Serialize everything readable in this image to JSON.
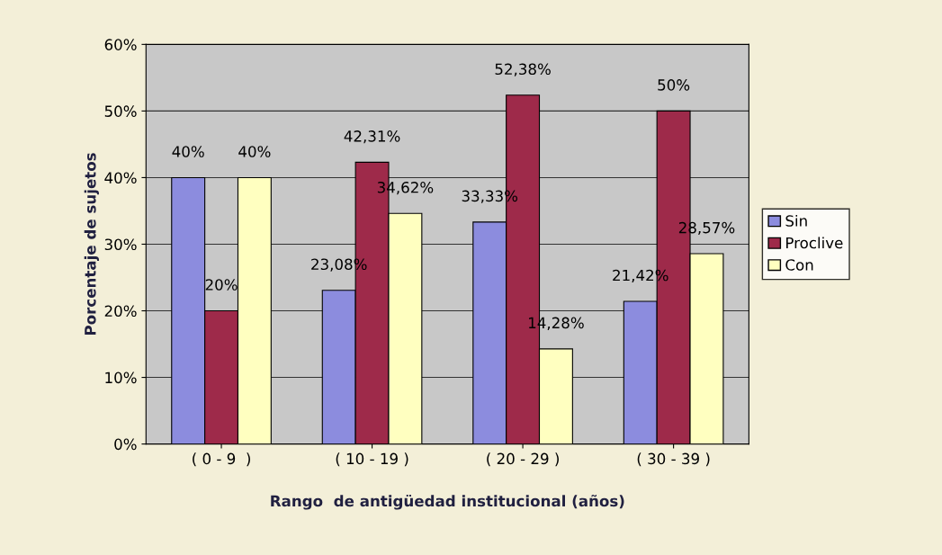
{
  "chart_data": {
    "type": "bar",
    "xlabel": "Rango  de antigüedad institucional (años)",
    "ylabel": "Porcentaje de sujetos",
    "categories": [
      "( 0 - 9  )",
      "( 10 - 19 )",
      "( 20 - 29 )",
      "( 30 - 39 )"
    ],
    "series": [
      {
        "name": "Sin",
        "color": "#8c8cde",
        "values": [
          40,
          23.08,
          33.33,
          21.42
        ],
        "value_labels": [
          "40%",
          "23,08%",
          "33,33%",
          "21,42%"
        ]
      },
      {
        "name": "Proclive",
        "color": "#9e2a4a",
        "values": [
          20,
          42.31,
          52.38,
          50
        ],
        "value_labels": [
          "20%",
          "42,31%",
          "52,38%",
          "50%"
        ]
      },
      {
        "name": "Con",
        "color": "#ffffc0",
        "values": [
          40,
          34.62,
          14.28,
          28.57
        ],
        "value_labels": [
          "40%",
          "34,62%",
          "14,28%",
          "28,57%"
        ]
      }
    ],
    "ylim": [
      0,
      60
    ],
    "yticks": [
      {
        "value": 0,
        "label": "0%"
      },
      {
        "value": 10,
        "label": "10%"
      },
      {
        "value": 20,
        "label": "20%"
      },
      {
        "value": 30,
        "label": "30%"
      },
      {
        "value": 40,
        "label": "40%"
      },
      {
        "value": 50,
        "label": "50%"
      },
      {
        "value": 60,
        "label": "60%"
      }
    ],
    "grid": "y",
    "legend": "right"
  }
}
